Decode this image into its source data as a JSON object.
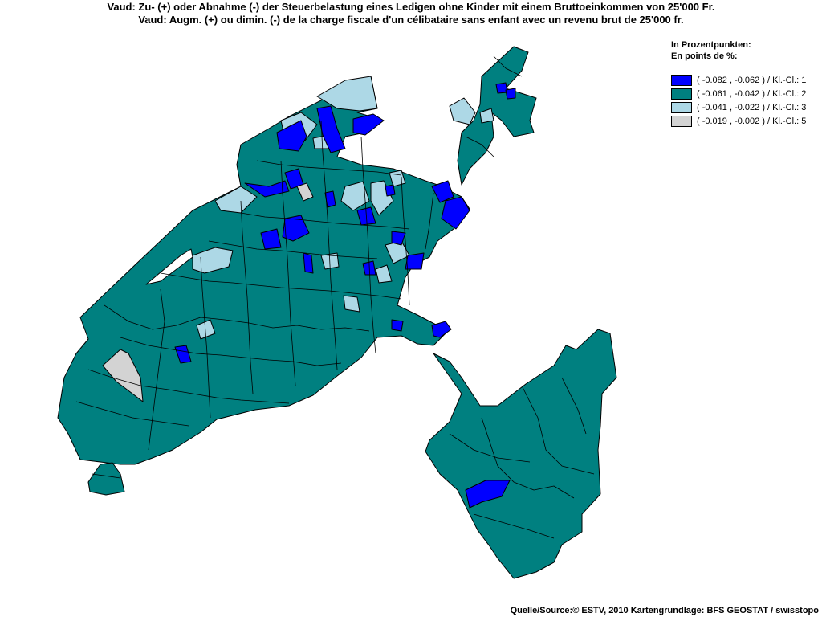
{
  "title": {
    "de": "Vaud: Zu- (+) oder Abnahme (-) der Steuerbelastung eines Ledigen ohne Kinder mit einem Bruttoeinkommen von 25'000 Fr.",
    "fr": "Vaud: Augm. (+) ou dimin. (-) de la charge fiscale d'un célibataire sans enfant avec un revenu brut de 25'000 fr."
  },
  "legend": {
    "heading_de": "In Prozentpunkten:",
    "heading_fr": "En points de %:",
    "classes": [
      {
        "label": "( -0.082 , -0.062 ) / Kl.-Cl.: 1",
        "color": "#0000ff"
      },
      {
        "label": "( -0.061 , -0.042 ) / Kl.-Cl.: 2",
        "color": "#008080"
      },
      {
        "label": "( -0.041 , -0.022 ) / Kl.-Cl.: 3",
        "color": "#add8e6"
      },
      {
        "label": "( -0.019 , -0.002 ) / Kl.-Cl.: 5",
        "color": "#d3d3d3"
      }
    ]
  },
  "source": "Quelle/Source:© ESTV, 2010 Kartengrundlage: BFS GEOSTAT / swisstopo"
}
